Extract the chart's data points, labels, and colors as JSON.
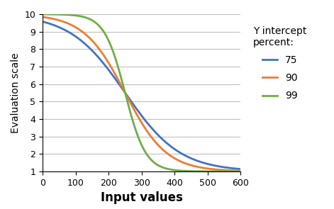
{
  "title": "",
  "xlabel": "Input values",
  "ylabel": "Evaluation scale",
  "xlim": [
    0,
    600
  ],
  "ylim": [
    1,
    10
  ],
  "xticks": [
    0,
    100,
    200,
    300,
    400,
    500,
    600
  ],
  "yticks": [
    1,
    2,
    3,
    4,
    5,
    6,
    7,
    8,
    9,
    10
  ],
  "legend_title": "Y intercept\npercent:",
  "series": [
    {
      "label": "75",
      "color": "#4472C4",
      "k": 0.012,
      "x0": 250
    },
    {
      "label": "90",
      "color": "#ED7D31",
      "k": 0.016,
      "x0": 250
    },
    {
      "label": "99",
      "color": "#70AD47",
      "k": 0.032,
      "x0": 250
    }
  ],
  "background_color": "#FFFFFF",
  "grid_color": "#BFBFBF",
  "xlabel_fontsize": 12,
  "ylabel_fontsize": 10,
  "legend_fontsize": 10,
  "tick_fontsize": 9,
  "linewidth": 2.0
}
